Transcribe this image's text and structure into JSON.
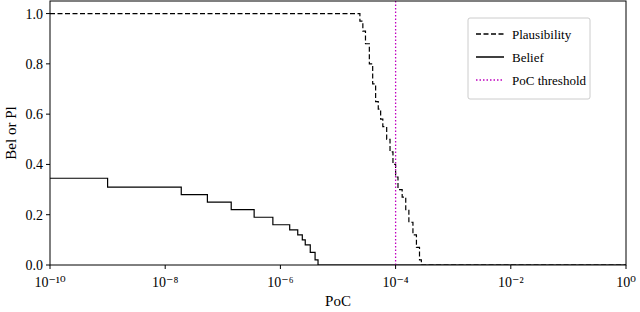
{
  "chart_data": {
    "type": "step",
    "xlabel": "PoC",
    "ylabel": "Bel or Pl",
    "log": "x",
    "xlim": [
      1e-10,
      1
    ],
    "ylim": [
      0,
      1.05
    ],
    "xticks": [
      {
        "value": 1e-10,
        "label": "10⁻¹⁰"
      },
      {
        "value": 1e-08,
        "label": "10⁻⁸"
      },
      {
        "value": 1e-06,
        "label": "10⁻⁶"
      },
      {
        "value": 0.0001,
        "label": "10⁻⁴"
      },
      {
        "value": 0.01,
        "label": "10⁻²"
      },
      {
        "value": 1,
        "label": "10⁰"
      }
    ],
    "yticks": [
      {
        "value": 0,
        "label": "0.0"
      },
      {
        "value": 0.2,
        "label": "0.2"
      },
      {
        "value": 0.4,
        "label": "0.4"
      },
      {
        "value": 0.6,
        "label": "0.6"
      },
      {
        "value": 0.8,
        "label": "0.8"
      },
      {
        "value": 1,
        "label": "1.0"
      }
    ],
    "grid": false,
    "legend": "upper right",
    "series": [
      {
        "name": "Plausibility",
        "color": "#000000",
        "line_style": "dashed",
        "x": [
          1e-10,
          2.4e-05,
          2.7e-05,
          3e-05,
          3.5e-05,
          4e-05,
          4.5e-05,
          5e-05,
          5.5e-05,
          6e-05,
          7e-05,
          8e-05,
          9e-05,
          0.0001,
          0.00011,
          0.00013,
          0.00015,
          0.00017,
          0.0002,
          0.00023,
          0.00026,
          0.00028,
          1
        ],
        "values": [
          1.0,
          0.97,
          0.93,
          0.88,
          0.8,
          0.72,
          0.65,
          0.62,
          0.58,
          0.55,
          0.5,
          0.45,
          0.4,
          0.35,
          0.3,
          0.27,
          0.22,
          0.17,
          0.12,
          0.07,
          0.02,
          0.0,
          0.0
        ]
      },
      {
        "name": "Belief",
        "color": "#000000",
        "line_style": "solid",
        "x": [
          1e-10,
          1e-09,
          1.9e-08,
          5.4e-08,
          1.4e-07,
          3.5e-07,
          7.4e-07,
          1.45e-06,
          2e-06,
          2.4e-06,
          2.7e-06,
          3.3e-06,
          4e-06,
          4.5e-06,
          1
        ],
        "values": [
          0.345,
          0.31,
          0.28,
          0.25,
          0.22,
          0.19,
          0.16,
          0.14,
          0.12,
          0.1,
          0.08,
          0.05,
          0.02,
          0.0,
          0.0
        ]
      }
    ],
    "thresholds": [
      {
        "name": "PoC threshold",
        "x": 0.0001,
        "color": "#bf00bf",
        "line_style": "dotted"
      }
    ]
  }
}
